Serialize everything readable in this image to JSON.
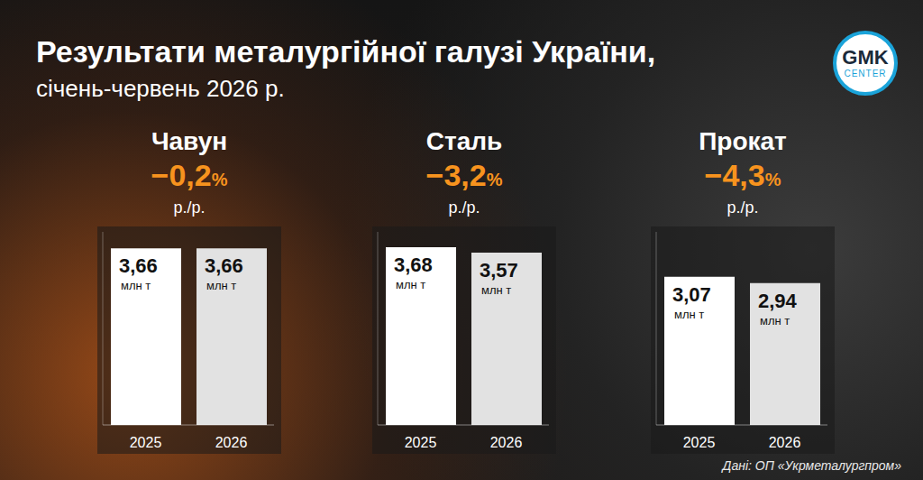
{
  "title": "Результати металургійної галузі України,",
  "subtitle": "січень-червень 2026 р.",
  "source": "Дані: ОП «Укрметалургпром»",
  "logo": {
    "text": "GMK",
    "subtext": "CENTER"
  },
  "chart_data": [
    {
      "type": "bar",
      "title": "Чавун",
      "change": "−0,2%",
      "change_note": "р./р.",
      "categories": [
        "2025",
        "2026"
      ],
      "values": [
        3.66,
        3.66
      ],
      "value_labels": [
        "3,66",
        "3,66"
      ],
      "unit": "млн т",
      "colors": [
        "#ffffff",
        "#e2e2e2"
      ],
      "ylim": [
        0,
        4
      ],
      "yticks": [],
      "tick_labels": "x",
      "data_labels": true,
      "grid": false
    },
    {
      "type": "bar",
      "title": "Сталь",
      "change": "−3,2%",
      "change_note": "р./р.",
      "categories": [
        "2025",
        "2026"
      ],
      "values": [
        3.68,
        3.57
      ],
      "value_labels": [
        "3,68",
        "3,57"
      ],
      "unit": "млн т",
      "colors": [
        "#ffffff",
        "#e2e2e2"
      ],
      "ylim": [
        0,
        4
      ],
      "yticks": [],
      "tick_labels": "x",
      "data_labels": true,
      "grid": false
    },
    {
      "type": "bar",
      "title": "Прокат",
      "change": "−4,3%",
      "change_note": "р./р.",
      "categories": [
        "2025",
        "2026"
      ],
      "values": [
        3.07,
        2.94
      ],
      "value_labels": [
        "3,07",
        "2,94"
      ],
      "unit": "млн т",
      "colors": [
        "#ffffff",
        "#e2e2e2"
      ],
      "ylim": [
        0,
        4
      ],
      "yticks": [],
      "tick_labels": "x",
      "data_labels": true,
      "grid": false
    }
  ]
}
